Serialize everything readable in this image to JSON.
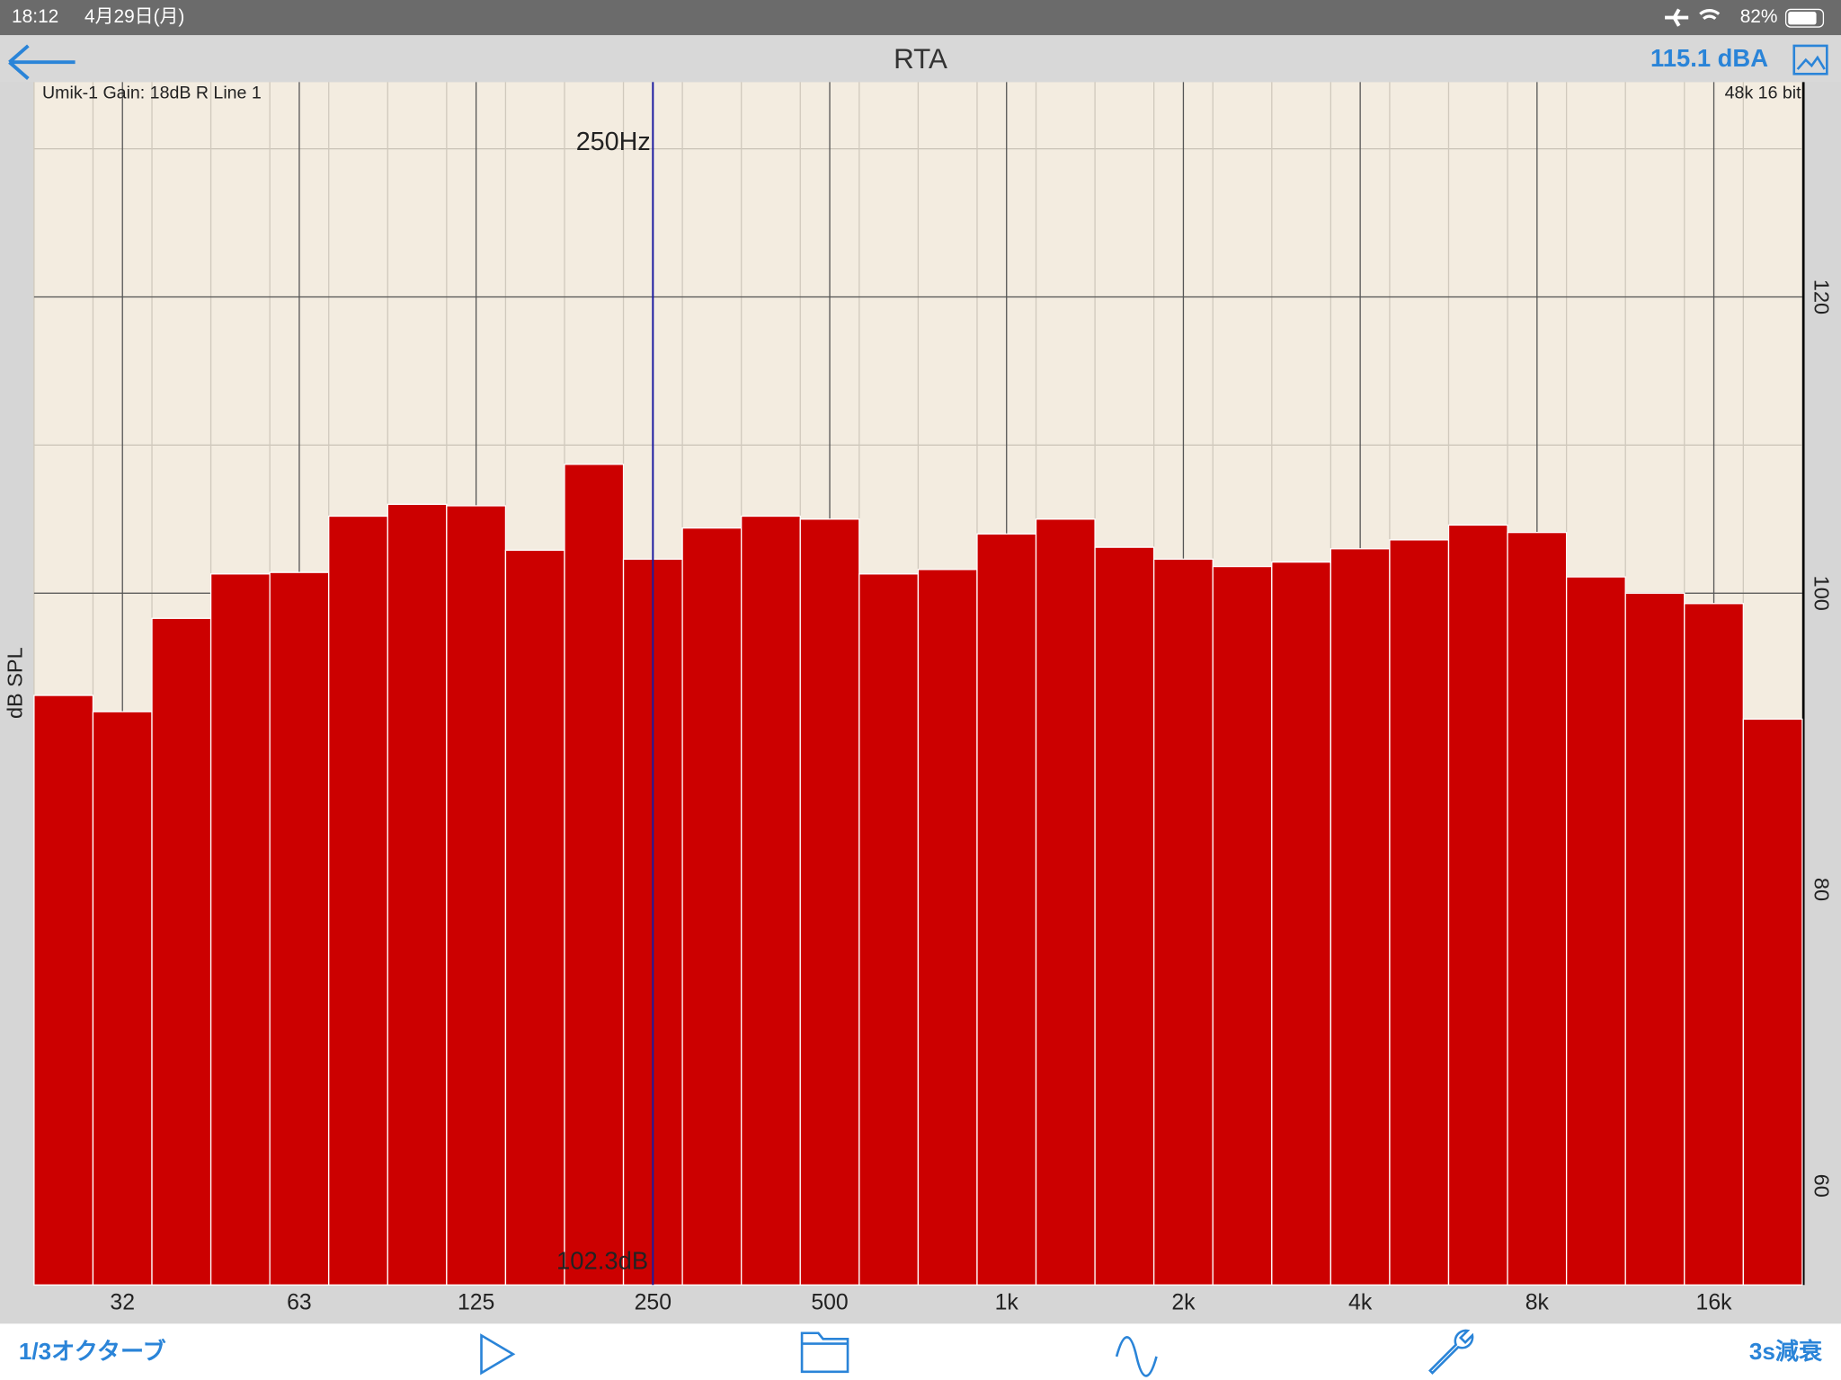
{
  "status_bar": {
    "time": "18:12",
    "date": "4月29日(月)",
    "battery": "82%"
  },
  "nav_bar": {
    "title": "RTA",
    "level": "115.1 dBA"
  },
  "info": {
    "left": "Umik-1  Gain: 18dB  R Line 1",
    "right": "48k 16 bit"
  },
  "chart_data": {
    "type": "bar",
    "y_label": "dB SPL",
    "color": "#cc0000",
    "grid": true,
    "categories": [
      null,
      "32",
      null,
      null,
      "63",
      null,
      null,
      "125",
      null,
      null,
      "250",
      null,
      null,
      "500",
      null,
      null,
      "1k",
      null,
      null,
      "2k",
      null,
      null,
      "4k",
      null,
      null,
      "8k",
      null,
      null,
      "16k",
      null
    ],
    "values": [
      93.1,
      92.0,
      98.3,
      101.3,
      101.4,
      105.2,
      106.0,
      105.9,
      102.9,
      108.7,
      102.3,
      104.4,
      105.2,
      105.0,
      101.3,
      101.6,
      104.0,
      105.0,
      103.1,
      102.3,
      101.8,
      102.1,
      103.0,
      103.6,
      104.6,
      104.1,
      101.1,
      100.0,
      99.3,
      91.5
    ],
    "ylim": [
      53.3,
      134.5
    ],
    "yticks": [
      60,
      80,
      100,
      120
    ],
    "annotations": [
      "250Hz",
      "102.3dB"
    ]
  },
  "toolbar": {
    "left": "1/3オクターブ",
    "right": "3s減衰"
  }
}
